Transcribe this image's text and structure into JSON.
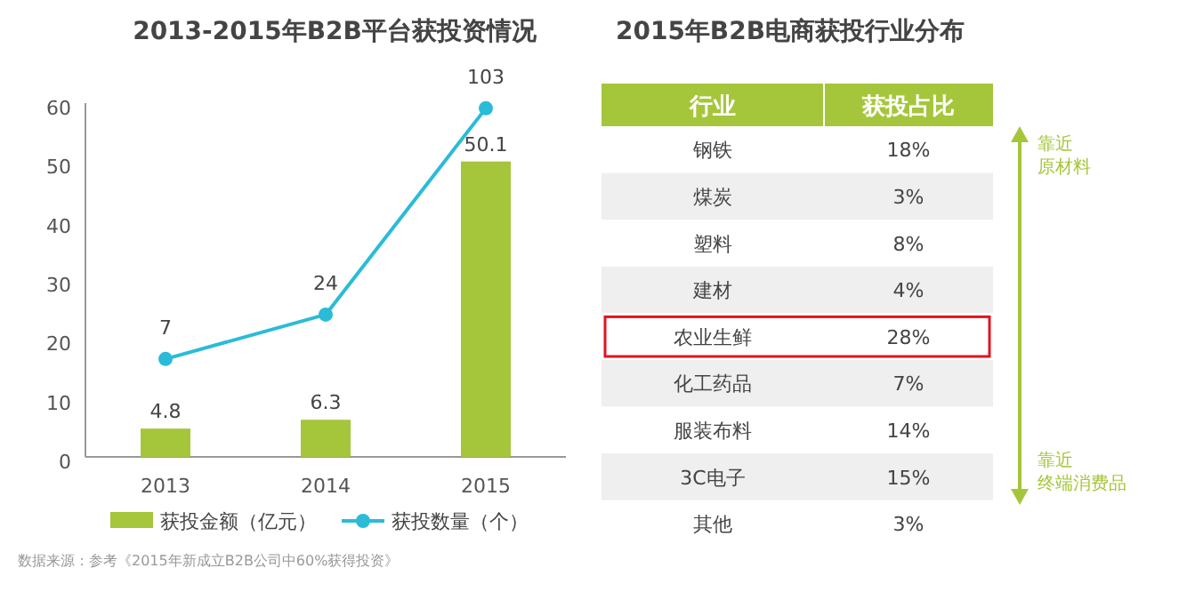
{
  "chart_data": [
    {
      "type": "bar",
      "title": "2013-2015年B2B平台获投资情况",
      "categories": [
        "2013",
        "2014",
        "2015"
      ],
      "ylim": [
        0,
        60
      ],
      "yticks": [
        0,
        10,
        20,
        30,
        40,
        50,
        60
      ],
      "y2lim": [
        -30.5,
        105
      ],
      "tick_labels": "xy",
      "data_labels": true,
      "legend": "bottom",
      "grid": false,
      "series": [
        {
          "name": "获投金额（亿元）",
          "type": "bar",
          "color": "#a5c63b",
          "values": [
            4.8,
            6.3,
            50.1
          ]
        },
        {
          "name": "获投数量（个）",
          "type": "line",
          "axis": "y2",
          "color": "#2bbbd8",
          "marker": "circle",
          "values": [
            7,
            24,
            103
          ]
        }
      ],
      "annotations": [
        "数据来源：参考《2015年新成立B2B公司中60%获得投资》"
      ]
    },
    {
      "type": "other",
      "title": "2015年B2B电商获投行业分布",
      "xlabel": "行业",
      "ylabel": "获投占比",
      "categories": [
        "钢铁",
        "煤炭",
        "塑料",
        "建材",
        "农业生鲜",
        "化工药品",
        "服装布料",
        "3C电子",
        "其他"
      ],
      "value_labels": [
        "18%",
        "3%",
        "8%",
        "4%",
        "28%",
        "7%",
        "14%",
        "15%",
        "3%"
      ],
      "annotations": [
        "靠近",
        "原材料",
        "靠近",
        "终端消费品"
      ]
    }
  ]
}
